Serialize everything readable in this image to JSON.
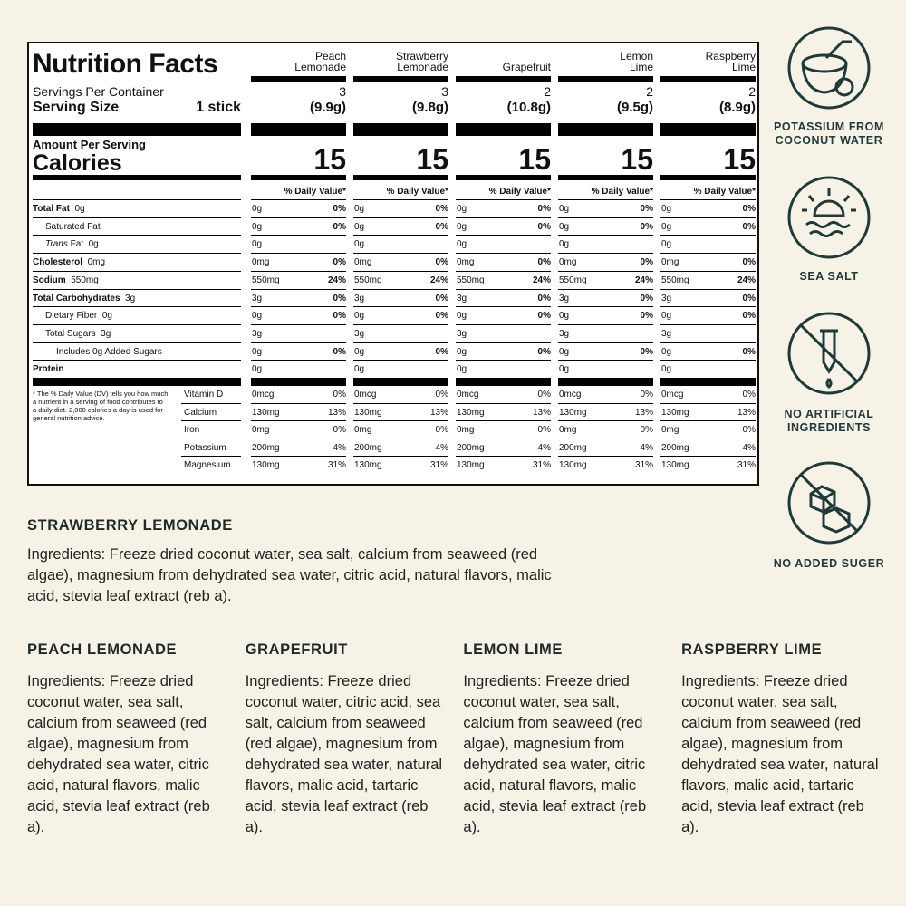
{
  "label": {
    "title": "Nutrition Facts",
    "servings_label": "Servings Per Container",
    "serving_size_label": "Serving Size",
    "serving_size": "1 stick",
    "amount_label": "Amount Per Serving",
    "calories_label": "Calories",
    "dv_header": "% Daily Value*",
    "nutrients": [
      {
        "name": "Total Fat",
        "amount": "0g",
        "bold": true,
        "indent": 0
      },
      {
        "name": "Saturated Fat",
        "bold": false,
        "indent": 1
      },
      {
        "italic": "Trans",
        "name": "Fat",
        "amount": "0g",
        "bold": false,
        "indent": 1
      },
      {
        "name": "Cholesterol",
        "amount": "0mg",
        "bold": true,
        "indent": 0
      },
      {
        "name": "Sodium",
        "amount": "550mg",
        "bold": true,
        "indent": 0
      },
      {
        "name": "Total Carbohydrates",
        "amount": "3g",
        "bold": true,
        "indent": 0
      },
      {
        "name": "Dietary Fiber",
        "amount": "0g",
        "bold": false,
        "indent": 1
      },
      {
        "name": "Total Sugars",
        "amount": "3g",
        "bold": false,
        "indent": 1
      },
      {
        "name": "Includes 0g Added Sugars",
        "bold": false,
        "indent": 2
      },
      {
        "name": "Protein",
        "bold": true,
        "indent": 0
      }
    ],
    "footnote": "* The % Daily Value (DV) tells you how much a nutrient in a serving of food contributes to a daily diet. 2,000 calories a day is used for general nutrition advice.",
    "vitamins": [
      "Vitamin D",
      "Calcium",
      "Iron",
      "Potassium",
      "Magnesium"
    ],
    "products": [
      {
        "name": "Peach Lemonade",
        "servings": "3",
        "weight": "(9.9g)",
        "calories": "15",
        "rows": [
          [
            "0g",
            "0%"
          ],
          [
            "0g",
            "0%"
          ],
          [
            "0g",
            null
          ],
          [
            "0mg",
            "0%"
          ],
          [
            "550mg",
            "24%"
          ],
          [
            "3g",
            "0%"
          ],
          [
            "0g",
            "0%"
          ],
          [
            "3g",
            null
          ],
          [
            "0g",
            "0%"
          ],
          [
            "0g",
            null
          ]
        ],
        "vitamins": [
          [
            "0mcg",
            "0%"
          ],
          [
            "130mg",
            "13%"
          ],
          [
            "0mg",
            "0%"
          ],
          [
            "200mg",
            "4%"
          ],
          [
            "130mg",
            "31%"
          ]
        ]
      },
      {
        "name": "Strawberry Lemonade",
        "servings": "3",
        "weight": "(9.8g)",
        "calories": "15",
        "rows": [
          [
            "0g",
            "0%"
          ],
          [
            "0g",
            "0%"
          ],
          [
            "0g",
            null
          ],
          [
            "0mg",
            "0%"
          ],
          [
            "550mg",
            "24%"
          ],
          [
            "3g",
            "0%"
          ],
          [
            "0g",
            "0%"
          ],
          [
            "3g",
            null
          ],
          [
            "0g",
            "0%"
          ],
          [
            "0g",
            null
          ]
        ],
        "vitamins": [
          [
            "0mcg",
            "0%"
          ],
          [
            "130mg",
            "13%"
          ],
          [
            "0mg",
            "0%"
          ],
          [
            "200mg",
            "4%"
          ],
          [
            "130mg",
            "31%"
          ]
        ]
      },
      {
        "name": "Grapefruit",
        "servings": "2",
        "weight": "(10.8g)",
        "calories": "15",
        "rows": [
          [
            "0g",
            "0%"
          ],
          [
            "0g",
            "0%"
          ],
          [
            "0g",
            null
          ],
          [
            "0mg",
            "0%"
          ],
          [
            "550mg",
            "24%"
          ],
          [
            "3g",
            "0%"
          ],
          [
            "0g",
            "0%"
          ],
          [
            "3g",
            null
          ],
          [
            "0g",
            "0%"
          ],
          [
            "0g",
            null
          ]
        ],
        "vitamins": [
          [
            "0mcg",
            "0%"
          ],
          [
            "130mg",
            "13%"
          ],
          [
            "0mg",
            "0%"
          ],
          [
            "200mg",
            "4%"
          ],
          [
            "130mg",
            "31%"
          ]
        ]
      },
      {
        "name": "Lemon Lime",
        "servings": "2",
        "weight": "(9.5g)",
        "calories": "15",
        "rows": [
          [
            "0g",
            "0%"
          ],
          [
            "0g",
            "0%"
          ],
          [
            "0g",
            null
          ],
          [
            "0mg",
            "0%"
          ],
          [
            "550mg",
            "24%"
          ],
          [
            "3g",
            "0%"
          ],
          [
            "0g",
            "0%"
          ],
          [
            "3g",
            null
          ],
          [
            "0g",
            "0%"
          ],
          [
            "0g",
            null
          ]
        ],
        "vitamins": [
          [
            "0mcg",
            "0%"
          ],
          [
            "130mg",
            "13%"
          ],
          [
            "0mg",
            "0%"
          ],
          [
            "200mg",
            "4%"
          ],
          [
            "130mg",
            "31%"
          ]
        ]
      },
      {
        "name": "Raspberry Lime",
        "servings": "2",
        "weight": "(8.9g)",
        "calories": "15",
        "rows": [
          [
            "0g",
            "0%"
          ],
          [
            "0g",
            "0%"
          ],
          [
            "0g",
            null
          ],
          [
            "0mg",
            "0%"
          ],
          [
            "550mg",
            "24%"
          ],
          [
            "3g",
            "0%"
          ],
          [
            "0g",
            "0%"
          ],
          [
            "3g",
            null
          ],
          [
            "0g",
            "0%"
          ],
          [
            "0g",
            null
          ]
        ],
        "vitamins": [
          [
            "0mcg",
            "0%"
          ],
          [
            "130mg",
            "13%"
          ],
          [
            "0mg",
            "0%"
          ],
          [
            "200mg",
            "4%"
          ],
          [
            "130mg",
            "31%"
          ]
        ]
      }
    ]
  },
  "icons": [
    {
      "label": "POTASSIUM FROM COCONUT WATER"
    },
    {
      "label": "SEA SALT"
    },
    {
      "label": "NO ARTIFICIAL INGREDIENTS"
    },
    {
      "label": "NO ADDED SUGER"
    }
  ],
  "featured_ingredients": {
    "title": "STRAWBERRY LEMONADE",
    "text": "Ingredients: Freeze dried coconut water, sea salt, calcium from seaweed (red algae), magnesium from dehydrated sea water, citric acid, natural flavors, malic acid, stevia leaf extract (reb a)."
  },
  "ingredients": [
    {
      "title": "PEACH LEMONADE",
      "text": "Ingredients: Freeze dried coconut water, sea salt, calcium from seaweed (red algae), magnesium from dehydrated sea water, citric acid, natural flavors, malic acid, stevia leaf extract (reb a)."
    },
    {
      "title": "GRAPEFRUIT",
      "text": "Ingredients: Freeze dried coconut water, citric acid, sea salt, calcium from seaweed (red algae), magnesium from dehydrated sea water, natural flavors, malic acid, tartaric acid, stevia leaf extract (reb a)."
    },
    {
      "title": "LEMON LIME",
      "text": "Ingredients: Freeze dried coconut water, sea salt, calcium from seaweed (red algae), magnesium from dehydrated sea water, citric acid, natural flavors, malic acid, stevia leaf extract (reb a)."
    },
    {
      "title": "RASPBERRY LIME",
      "text": "Ingredients: Freeze dried coconut water, sea salt, calcium from seaweed (red algae), magnesium from dehydrated sea water, natural flavors, malic acid, tartaric acid, stevia leaf extract (reb a)."
    }
  ]
}
